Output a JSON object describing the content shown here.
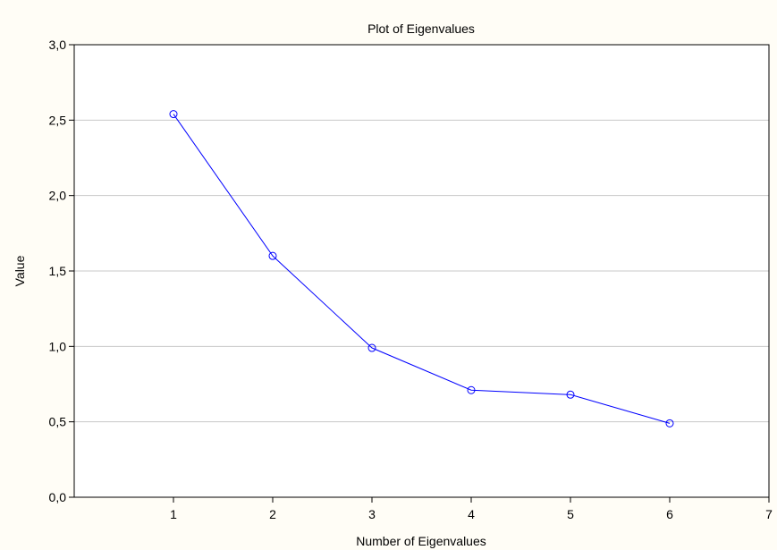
{
  "chart_data": {
    "type": "line",
    "title": "Plot of Eigenvalues",
    "xlabel": "Number of Eigenvalues",
    "ylabel": "Value",
    "xlim": [
      0,
      7
    ],
    "ylim": [
      0,
      3
    ],
    "x_ticks": [
      1,
      2,
      3,
      4,
      5,
      6,
      7
    ],
    "x_tick_labels": [
      "1",
      "2",
      "3",
      "4",
      "5",
      "6",
      "7"
    ],
    "y_ticks": [
      0,
      0.5,
      1,
      1.5,
      2,
      2.5,
      3
    ],
    "y_tick_labels": [
      "0,0",
      "0,5",
      "1,0",
      "1,5",
      "2,0",
      "2,5",
      "3,0"
    ],
    "grid": "horizontal",
    "legend": "none",
    "series": [
      {
        "color": "#0000ff",
        "marker": "circle",
        "x": [
          1,
          2,
          3,
          4,
          5,
          6
        ],
        "values": [
          2.54,
          1.6,
          0.99,
          0.71,
          0.68,
          0.49
        ]
      }
    ]
  }
}
